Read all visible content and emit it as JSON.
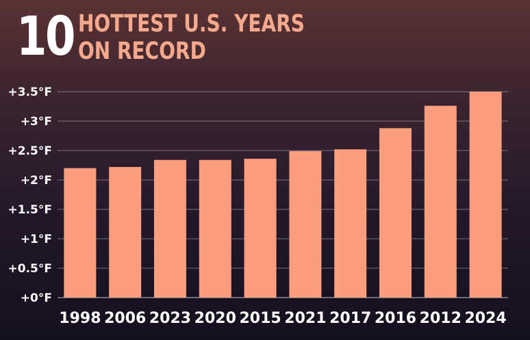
{
  "title": {
    "number": "10",
    "line1": "HOTTEST U.S. YEARS",
    "line2": "ON RECORD"
  },
  "chart_data": {
    "type": "bar",
    "title": "10 HOTTEST U.S. YEARS ON RECORD",
    "categories": [
      "1998",
      "2006",
      "2023",
      "2020",
      "2015",
      "2021",
      "2017",
      "2016",
      "2012",
      "2024"
    ],
    "values": [
      2.2,
      2.22,
      2.34,
      2.34,
      2.36,
      2.49,
      2.52,
      2.88,
      3.26,
      3.5
    ],
    "ylim": [
      0,
      3.5
    ],
    "yticks": [
      0,
      0.5,
      1,
      1.5,
      2,
      2.5,
      3,
      3.5
    ],
    "ytick_labels": [
      "+0°F",
      "+0.5°F",
      "+1°F",
      "+1.5°F",
      "+2°F",
      "+2.5°F",
      "+3°F",
      "+3.5°F"
    ],
    "grid": true,
    "bar_color": "#fb9e7d"
  }
}
